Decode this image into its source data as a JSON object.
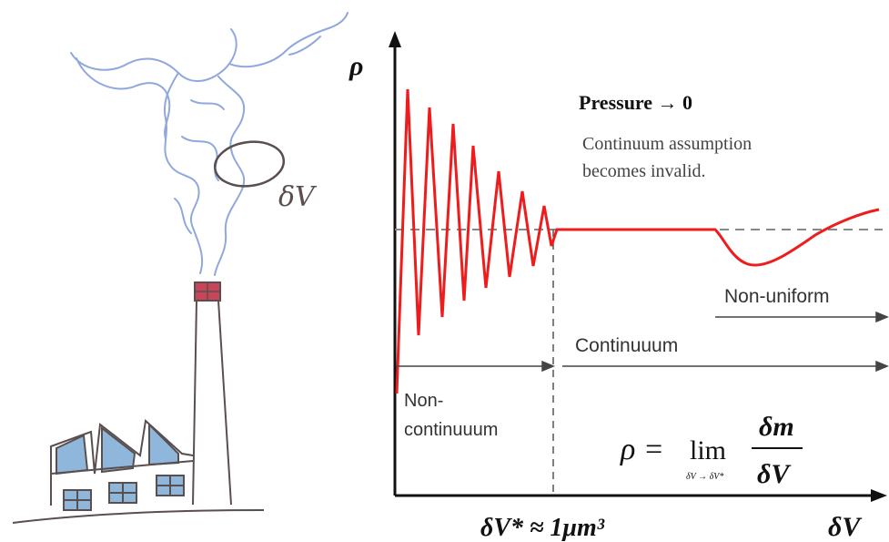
{
  "sketch": {
    "probe_label": "δV"
  },
  "axes": {
    "y_label": "ρ",
    "x_label": "δV",
    "x_marker": "δV* ≈ 1μm³"
  },
  "note": {
    "title": "Pressure → 0",
    "line1": "Continuum assumption",
    "line2": "becomes invalid."
  },
  "regions": {
    "non_continuum_line1": "Non-",
    "non_continuum_line2": "continuuum",
    "continuum": "Continuuum",
    "non_uniform": "Non-uniform"
  },
  "formula": {
    "lhs": "ρ = ",
    "lim": "lim",
    "sub": "δV → δV*",
    "num": "δm",
    "den": "δV"
  },
  "colors": {
    "curve": "#ee1c1c",
    "smoke": "#8fa8dd",
    "sketch": "#5a4e4e",
    "window": "#8fb6db",
    "chimney_top": "#c8455a",
    "axis": "#111111"
  }
}
